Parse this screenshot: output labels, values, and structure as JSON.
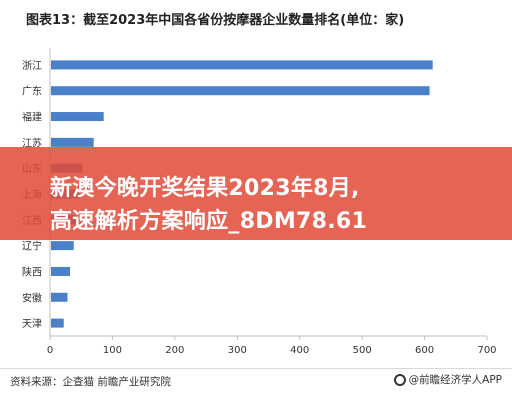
{
  "chart_data": {
    "type": "bar",
    "orientation": "horizontal",
    "title": "图表13：截至2023年中国各省份按摩器企业数量排名(单位：家)",
    "xlabel": "",
    "ylabel": "",
    "categories": [
      "浙江",
      "广东",
      "福建",
      "江苏",
      "山东",
      "上海",
      "江西",
      "辽宁",
      "陕西",
      "安徽",
      "天津"
    ],
    "values": [
      613,
      608,
      86,
      70,
      52,
      48,
      45,
      38,
      32,
      28,
      22
    ],
    "xlim": [
      0,
      700
    ],
    "xticks": [
      "0",
      "100",
      "200",
      "300",
      "400",
      "500",
      "600",
      "700"
    ],
    "bar_color": "#4a7fc9",
    "grid": false,
    "legend": "none"
  },
  "banner": {
    "line1": "新澳今晚开奖结果2023年8月,",
    "line2": "高速解析方案响应_8DM78.61"
  },
  "footer": {
    "source": "资料来源：企查猫 前瞻产业研究院",
    "brand": "@前瞻经济学人APP"
  }
}
